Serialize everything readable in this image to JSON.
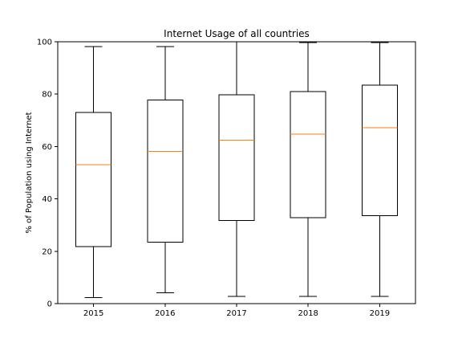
{
  "chart_data": {
    "type": "box",
    "title": "Internet Usage of all countries",
    "xlabel": "",
    "ylabel": "% of Population using Internet",
    "ylim": [
      0,
      100
    ],
    "yticks": [
      0,
      20,
      40,
      60,
      80,
      100
    ],
    "categories": [
      "2015",
      "2016",
      "2017",
      "2018",
      "2019"
    ],
    "boxes": [
      {
        "category": "2015",
        "whisker_low": 2.3,
        "q1": 21.8,
        "median": 53.0,
        "q3": 73.0,
        "whisker_high": 98.2
      },
      {
        "category": "2016",
        "whisker_low": 4.2,
        "q1": 23.5,
        "median": 58.1,
        "q3": 77.7,
        "whisker_high": 98.2
      },
      {
        "category": "2017",
        "whisker_low": 2.7,
        "q1": 31.8,
        "median": 62.4,
        "q3": 79.7,
        "whisker_high": 100.0
      },
      {
        "category": "2018",
        "whisker_low": 2.7,
        "q1": 32.8,
        "median": 64.7,
        "q3": 81.0,
        "whisker_high": 99.7
      },
      {
        "category": "2019",
        "whisker_low": 2.7,
        "q1": 33.6,
        "median": 67.2,
        "q3": 83.4,
        "whisker_high": 99.7
      }
    ],
    "colors": {
      "box": "#000000",
      "median": "#ff7f0e",
      "axes": "#000000"
    },
    "grid": false,
    "legend": "none"
  }
}
